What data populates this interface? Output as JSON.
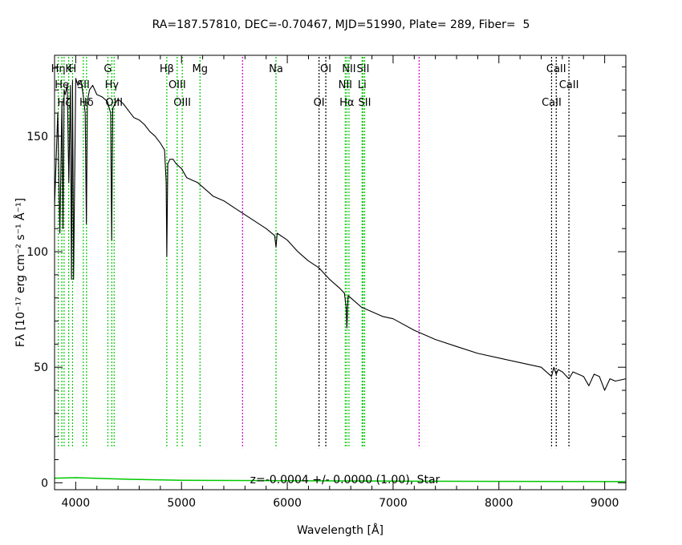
{
  "chart_data": {
    "type": "line",
    "title": "RA=187.57810, DEC=-0.70467, MJD=51990, Plate= 289, Fiber=  5",
    "xlabel": "Wavelength [Å]",
    "ylabel": "Fλ [10⁻¹⁷ erg cm⁻² s⁻¹ Å⁻¹]",
    "xlim": [
      3800,
      9200
    ],
    "ylim": [
      -3,
      185
    ],
    "x_ticks": [
      4000,
      5000,
      6000,
      7000,
      8000,
      9000
    ],
    "y_ticks": [
      0,
      50,
      100,
      150
    ],
    "grid": false,
    "annotation": "z=-0.0004 +/- 0.0000 (1.00), Star",
    "colors": {
      "spectrum": "#000000",
      "error": "#00c800",
      "line_marks": "#00c800",
      "sky_marks": "#cc00cc",
      "absorption_marks": "#000000"
    },
    "series": [
      {
        "name": "spectrum",
        "x": [
          3800,
          3830,
          3850,
          3870,
          3880,
          3890,
          3900,
          3920,
          3935,
          3950,
          3960,
          3970,
          3980,
          4000,
          4020,
          4050,
          4070,
          4090,
          4101,
          4110,
          4130,
          4160,
          4200,
          4250,
          4300,
          4330,
          4340,
          4350,
          4370,
          4400,
          4450,
          4500,
          4550,
          4600,
          4650,
          4700,
          4750,
          4800,
          4840,
          4855,
          4861,
          4870,
          4890,
          4920,
          4950,
          5000,
          5050,
          5100,
          5150,
          5200,
          5250,
          5300,
          5400,
          5500,
          5600,
          5700,
          5800,
          5880,
          5893,
          5905,
          6000,
          6100,
          6200,
          6300,
          6400,
          6500,
          6540,
          6556,
          6563,
          6575,
          6600,
          6700,
          6800,
          6900,
          7000,
          7200,
          7400,
          7600,
          7800,
          8000,
          8200,
          8400,
          8498,
          8520,
          8542,
          8560,
          8600,
          8662,
          8700,
          8800,
          8850,
          8900,
          8950,
          9000,
          9050,
          9100,
          9200
        ],
        "values": [
          120,
          160,
          108,
          165,
          110,
          170,
          168,
          172,
          130,
          172,
          88,
          174,
          88,
          175,
          172,
          174,
          168,
          160,
          112,
          165,
          170,
          172,
          168,
          167,
          165,
          160,
          105,
          162,
          164,
          166,
          164,
          161,
          158,
          157,
          155,
          152,
          150,
          147,
          144,
          130,
          98,
          138,
          140,
          140,
          138,
          136,
          132,
          131,
          130,
          128,
          126,
          124,
          122,
          119,
          116,
          113,
          110,
          107,
          102,
          108,
          105,
          100,
          96,
          93,
          88,
          84,
          82,
          76,
          67,
          81,
          80,
          76,
          74,
          72,
          71,
          66,
          62,
          59,
          56,
          54,
          52,
          50,
          46,
          50,
          47,
          49,
          48,
          45,
          48,
          46,
          42,
          47,
          46,
          40,
          45,
          44,
          45
        ]
      },
      {
        "name": "error",
        "x": [
          3800,
          4000,
          4500,
          5000,
          6000,
          7000,
          8000,
          9200
        ],
        "values": [
          2,
          2.2,
          1.5,
          1.1,
          0.9,
          0.7,
          0.6,
          0.5
        ]
      }
    ],
    "line_markers": {
      "green": [
        {
          "x": 3835,
          "label": "Hη",
          "row": 0
        },
        {
          "x": 3869,
          "label": "He",
          "row": 1
        },
        {
          "x": 3890,
          "label": "Hζ",
          "row": 2
        },
        {
          "x": 3934,
          "label": "K",
          "row": 0
        },
        {
          "x": 3970,
          "label": "H",
          "row": 0
        },
        {
          "x": 4072,
          "label": "SII",
          "row": 1
        },
        {
          "x": 4102,
          "label": "Hδ",
          "row": 2
        },
        {
          "x": 4304,
          "label": "G",
          "row": 0
        },
        {
          "x": 4341,
          "label": "Hγ",
          "row": 1
        },
        {
          "x": 4363,
          "label": "OIII",
          "row": 2
        },
        {
          "x": 4861,
          "label": "Hβ",
          "row": 0
        },
        {
          "x": 4959,
          "label": "OIII",
          "row": 1
        },
        {
          "x": 5007,
          "label": "OIII",
          "row": 2
        },
        {
          "x": 5175,
          "label": "Mg",
          "row": 0
        },
        {
          "x": 5893,
          "label": "Na",
          "row": 0
        },
        {
          "x": 6548,
          "label": "NII",
          "row": 1
        },
        {
          "x": 6563,
          "label": "Hα",
          "row": 2
        },
        {
          "x": 6583,
          "label": "NII",
          "row": 0
        },
        {
          "x": 6707,
          "label": "Li",
          "row": 1
        },
        {
          "x": 6716,
          "label": "SII",
          "row": 0
        },
        {
          "x": 6731,
          "label": "SII",
          "row": 2
        }
      ],
      "black": [
        {
          "x": 6300,
          "label": "OI",
          "row": 2
        },
        {
          "x": 6364,
          "label": "OI",
          "row": 0
        },
        {
          "x": 8498,
          "label": "CaII",
          "row": 2
        },
        {
          "x": 8542,
          "label": "CaII",
          "row": 0
        },
        {
          "x": 8662,
          "label": "CaII",
          "row": 1
        }
      ],
      "magenta": [
        5577,
        7246
      ]
    }
  }
}
